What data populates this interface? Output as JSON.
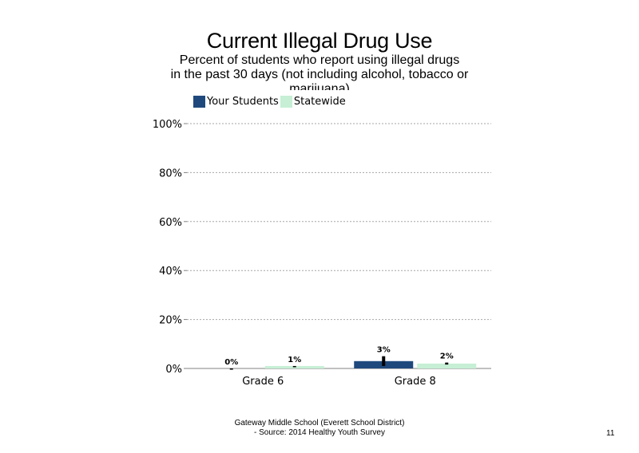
{
  "slide": {
    "title": "Current Illegal Drug Use",
    "subtitle_line1": "Percent of students who report using illegal drugs",
    "subtitle_line2": "in the past 30 days (not including alcohol, tobacco or",
    "subtitle_line3": "marijuana)",
    "footer_line1": "Gateway Middle  School (Everett School District)",
    "footer_line2": "- Source: 2014 Healthy  Youth Survey",
    "page_number": "11"
  },
  "chart_data": {
    "type": "bar",
    "categories": [
      "Grade 6",
      "Grade 8"
    ],
    "series": [
      {
        "name": "Your Students",
        "values": [
          0,
          3
        ],
        "labels": [
          "0%",
          "3%"
        ],
        "color": "#1f497d",
        "error_range": [
          [
            0,
            0
          ],
          [
            1,
            5
          ]
        ]
      },
      {
        "name": "Statewide",
        "values": [
          1,
          2
        ],
        "labels": [
          "1%",
          "2%"
        ],
        "color": "#c6efd5",
        "error_range": [
          [
            0.6,
            1.0
          ],
          [
            1.6,
            2.4
          ]
        ]
      }
    ],
    "y_ticks": [
      "0%",
      "20%",
      "40%",
      "60%",
      "80%",
      "100%"
    ],
    "ylim": [
      0,
      100
    ],
    "xlabel": "",
    "ylabel": "",
    "grid": true,
    "legend_position": "top"
  }
}
